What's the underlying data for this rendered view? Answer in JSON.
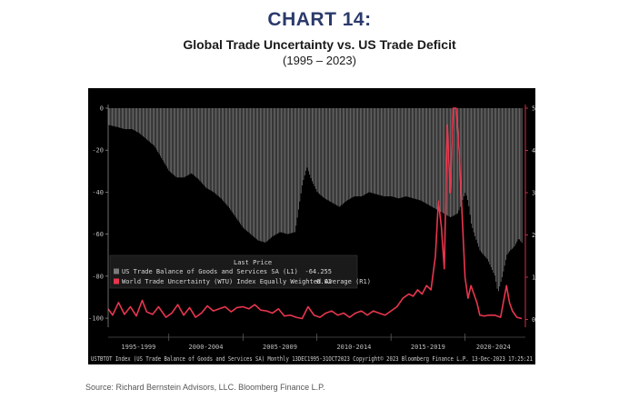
{
  "header": {
    "chart_number": "CHART 14:",
    "title": "Global Trade Uncertainty vs. US Trade Deficit",
    "subtitle": "(1995 – 2023)"
  },
  "source": "Source: Richard Bernstein Advisors, LLC. Bloomberg Finance L.P.",
  "bloomberg_footer": "USTBTOT Index (US Trade Balance of Goods and Services SA)  Monthly 13DEC1995-31OCT2023 Copyright© 2023 Bloomberg Finance L.P.  13-Dec-2023 17:25:21",
  "legend": {
    "header": "Last Price",
    "items": [
      {
        "label": "US Trade Balance of Goods and Services SA  (L1)",
        "value": "-64.255",
        "color": "#7a7a7a"
      },
      {
        "label": "World Trade Uncertainty (WTU) Index Equally Weighted Average  (R1)",
        "value": "0.02",
        "color": "#e8364e"
      }
    ]
  },
  "colors": {
    "bars": "#7a7a7a",
    "line": "#e8364e",
    "background": "#000000",
    "right_axis": "#e8364e"
  },
  "chart_data": {
    "type": "bar",
    "left_axis": {
      "ticks": [
        "0",
        "-20",
        "-40",
        "-60",
        "-80",
        "-100"
      ],
      "range": [
        -103,
        0
      ]
    },
    "right_axis": {
      "ticks": [
        "5.00",
        "4.00",
        "3.00",
        "2.00",
        "1.00",
        "0.00"
      ],
      "range": [
        -0.12,
        5.0
      ]
    },
    "x_labels": [
      "1995-1999",
      "2000-2004",
      "2005-2009",
      "2010-2014",
      "2015-2019",
      "2020-2024"
    ],
    "x_range": [
      1995.9,
      2023.83
    ],
    "series": [
      {
        "name": "US Trade Balance of Goods and Services SA",
        "axis": "left",
        "style": "bars",
        "x": [
          1995.9,
          1996.5,
          1997.0,
          1997.5,
          1998.0,
          1998.5,
          1999.0,
          1999.5,
          2000.0,
          2000.5,
          2001.0,
          2001.5,
          2002.0,
          2002.5,
          2003.0,
          2003.5,
          2004.0,
          2004.5,
          2005.0,
          2005.5,
          2006.0,
          2006.5,
          2007.0,
          2007.5,
          2008.0,
          2008.5,
          2009.0,
          2009.3,
          2009.6,
          2010.0,
          2010.5,
          2011.0,
          2011.5,
          2012.0,
          2012.5,
          2013.0,
          2013.5,
          2014.0,
          2014.5,
          2015.0,
          2015.5,
          2016.0,
          2016.5,
          2017.0,
          2017.5,
          2018.0,
          2018.5,
          2019.0,
          2019.5,
          2020.0,
          2020.2,
          2020.4,
          2020.6,
          2021.0,
          2021.5,
          2022.0,
          2022.2,
          2022.5,
          2022.8,
          2023.0,
          2023.3,
          2023.6,
          2023.83
        ],
        "values": [
          -8,
          -9,
          -10,
          -10,
          -12,
          -15,
          -18,
          -24,
          -30,
          -33,
          -33,
          -31,
          -34,
          -38,
          -40,
          -43,
          -47,
          -52,
          -57,
          -60,
          -63,
          -64,
          -61,
          -59,
          -60,
          -59,
          -36,
          -28,
          -34,
          -40,
          -43,
          -45,
          -47,
          -44,
          -42,
          -42,
          -40,
          -41,
          -42,
          -42,
          -43,
          -42,
          -43,
          -44,
          -46,
          -48,
          -50,
          -52,
          -50,
          -40,
          -45,
          -55,
          -60,
          -68,
          -72,
          -80,
          -88,
          -80,
          -70,
          -68,
          -66,
          -62,
          -64.255
        ]
      },
      {
        "name": "World Trade Uncertainty (WTU) Index Equally Weighted Average",
        "axis": "right",
        "style": "line",
        "x": [
          1995.9,
          1996.2,
          1996.6,
          1997.0,
          1997.4,
          1997.8,
          1998.2,
          1998.5,
          1998.9,
          1999.3,
          1999.8,
          2000.2,
          2000.6,
          2001.0,
          2001.4,
          2001.8,
          2002.2,
          2002.6,
          2003.0,
          2003.4,
          2003.8,
          2004.2,
          2004.6,
          2005.0,
          2005.4,
          2005.8,
          2006.2,
          2006.6,
          2007.0,
          2007.4,
          2007.8,
          2008.2,
          2008.6,
          2009.0,
          2009.4,
          2009.8,
          2010.2,
          2010.6,
          2011.0,
          2011.4,
          2011.8,
          2012.2,
          2012.6,
          2013.0,
          2013.4,
          2013.8,
          2014.2,
          2014.6,
          2015.0,
          2015.4,
          2015.8,
          2016.2,
          2016.5,
          2016.8,
          2017.1,
          2017.4,
          2017.7,
          2018.0,
          2018.2,
          2018.4,
          2018.6,
          2018.8,
          2019.0,
          2019.2,
          2019.4,
          2019.6,
          2019.8,
          2020.0,
          2020.2,
          2020.4,
          2020.6,
          2020.8,
          2021.0,
          2021.3,
          2021.6,
          2022.0,
          2022.4,
          2022.8,
          2023.0,
          2023.2,
          2023.5,
          2023.83
        ],
        "values": [
          0.25,
          0.1,
          0.4,
          0.12,
          0.3,
          0.08,
          0.45,
          0.18,
          0.12,
          0.3,
          0.05,
          0.15,
          0.35,
          0.1,
          0.28,
          0.05,
          0.15,
          0.32,
          0.2,
          0.25,
          0.3,
          0.18,
          0.28,
          0.3,
          0.25,
          0.35,
          0.22,
          0.2,
          0.15,
          0.25,
          0.08,
          0.1,
          0.05,
          0.02,
          0.3,
          0.1,
          0.05,
          0.15,
          0.2,
          0.1,
          0.15,
          0.05,
          0.15,
          0.2,
          0.1,
          0.2,
          0.15,
          0.1,
          0.2,
          0.3,
          0.5,
          0.6,
          0.55,
          0.7,
          0.6,
          0.8,
          0.7,
          1.5,
          2.8,
          2.2,
          1.2,
          4.6,
          3.0,
          5.0,
          5.0,
          4.0,
          2.5,
          1.0,
          0.5,
          0.8,
          0.6,
          0.4,
          0.1,
          0.08,
          0.1,
          0.1,
          0.05,
          0.8,
          0.4,
          0.2,
          0.05,
          0.02
        ]
      }
    ]
  }
}
